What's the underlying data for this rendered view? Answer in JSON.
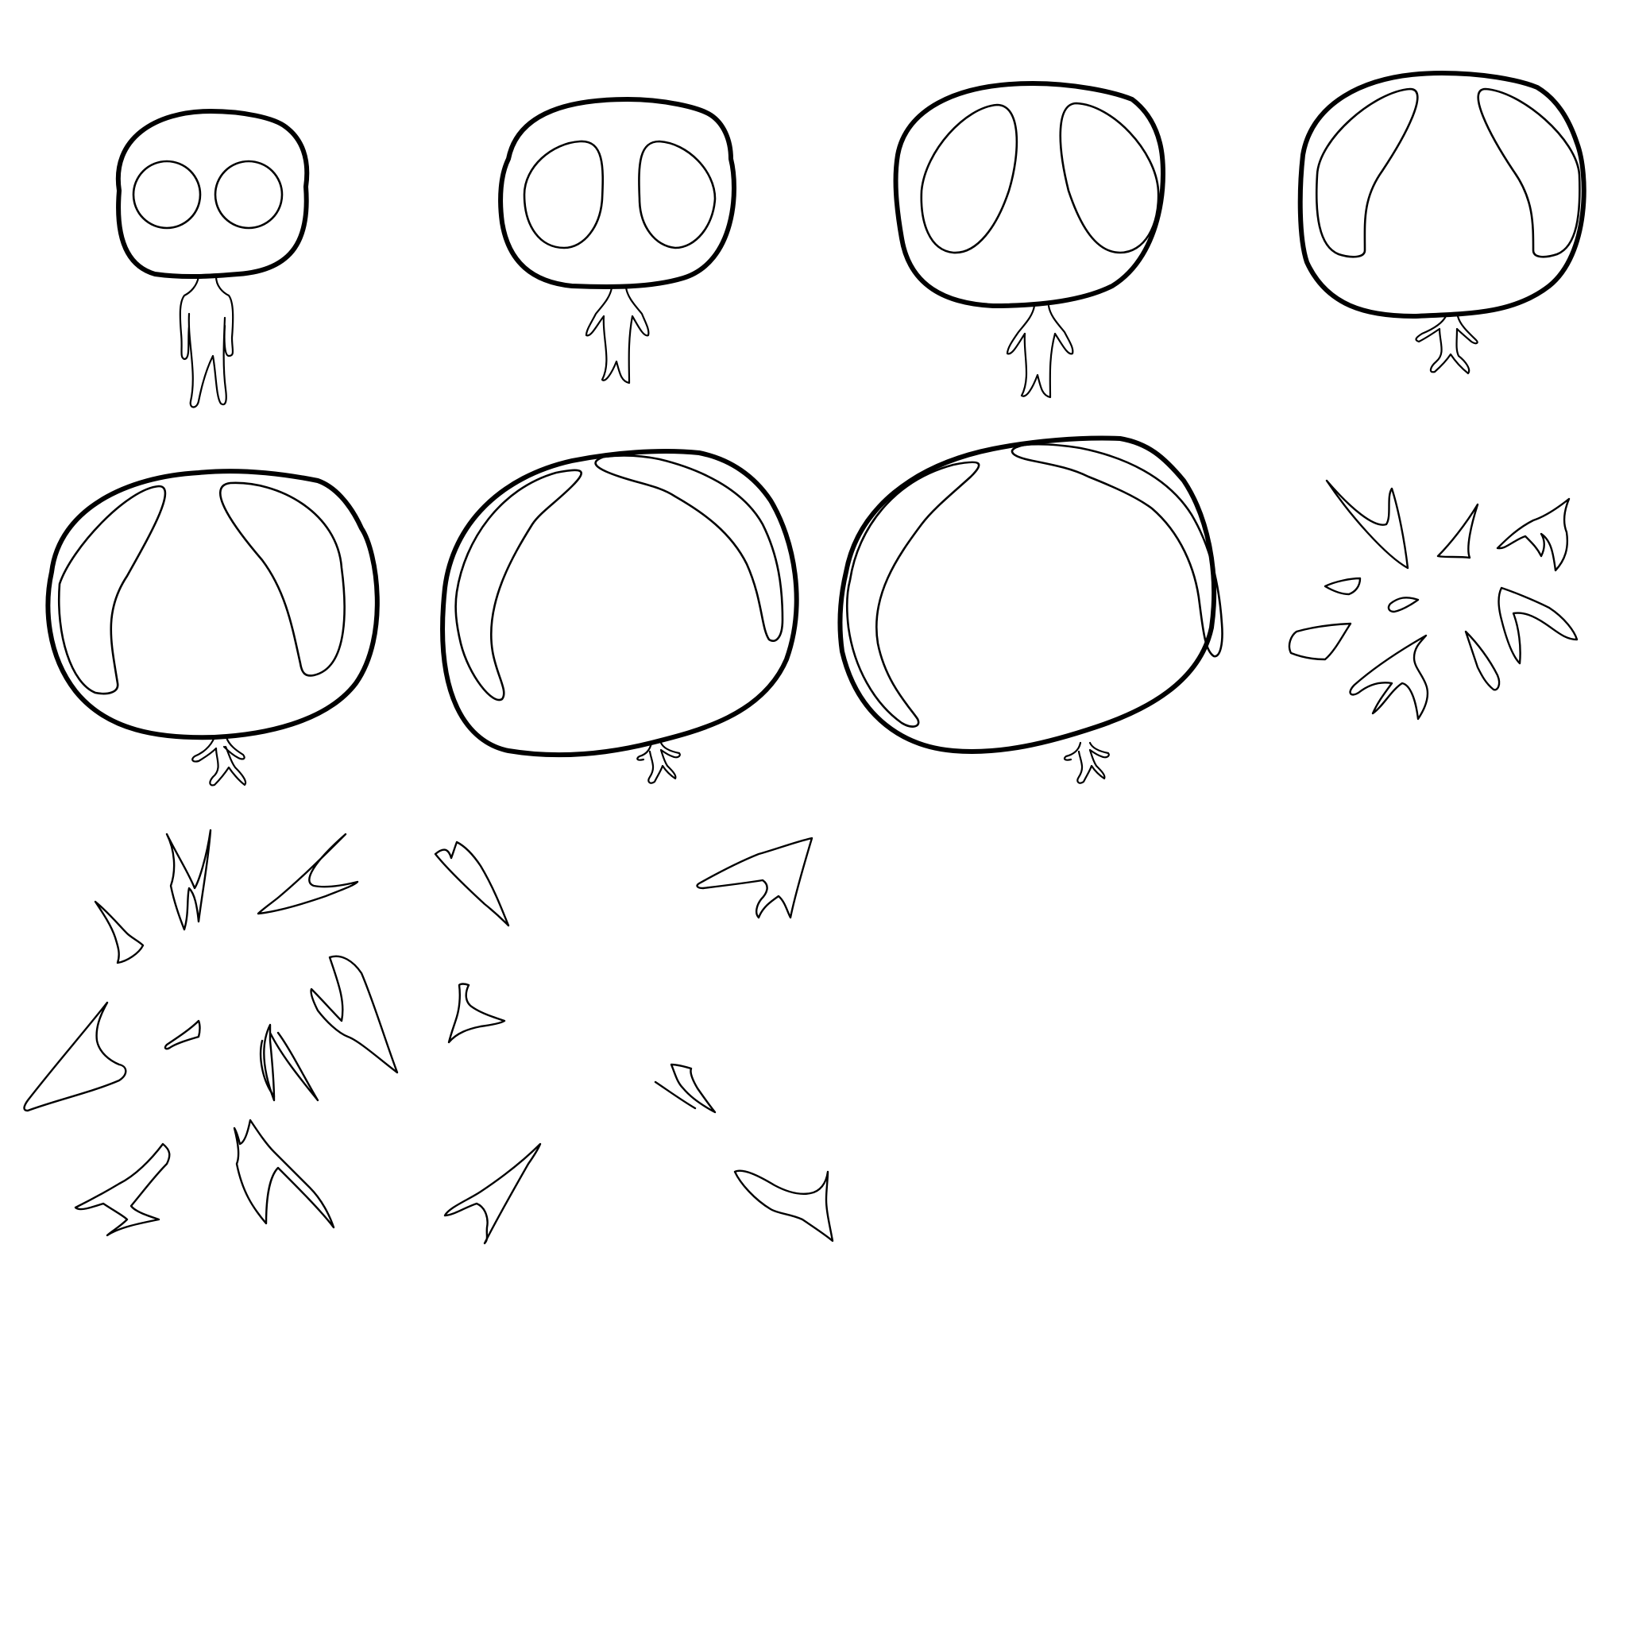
{
  "sheet": {
    "background": "#ffffff",
    "line_color": "#000000",
    "frames": [
      {
        "name": "frame-1",
        "stage": "idle",
        "eyes": "round"
      },
      {
        "name": "frame-2",
        "stage": "inflate",
        "eyes": "oval"
      },
      {
        "name": "frame-3",
        "stage": "inflate",
        "eyes": "tall-oval"
      },
      {
        "name": "frame-4",
        "stage": "inflate",
        "eyes": "stretched"
      },
      {
        "name": "frame-5",
        "stage": "inflate",
        "eyes": "stretched-wide"
      },
      {
        "name": "frame-6",
        "stage": "inflate",
        "eyes": "rim-highlight"
      },
      {
        "name": "frame-7",
        "stage": "max-inflate",
        "eyes": "rim-highlight"
      },
      {
        "name": "frame-8",
        "stage": "burst",
        "eyes": "none"
      },
      {
        "name": "frame-9",
        "stage": "fragments",
        "eyes": "none"
      },
      {
        "name": "frame-10",
        "stage": "fragments-fading",
        "eyes": "none"
      },
      {
        "name": "frame-11",
        "stage": "fragments-fading",
        "eyes": "none"
      }
    ]
  }
}
